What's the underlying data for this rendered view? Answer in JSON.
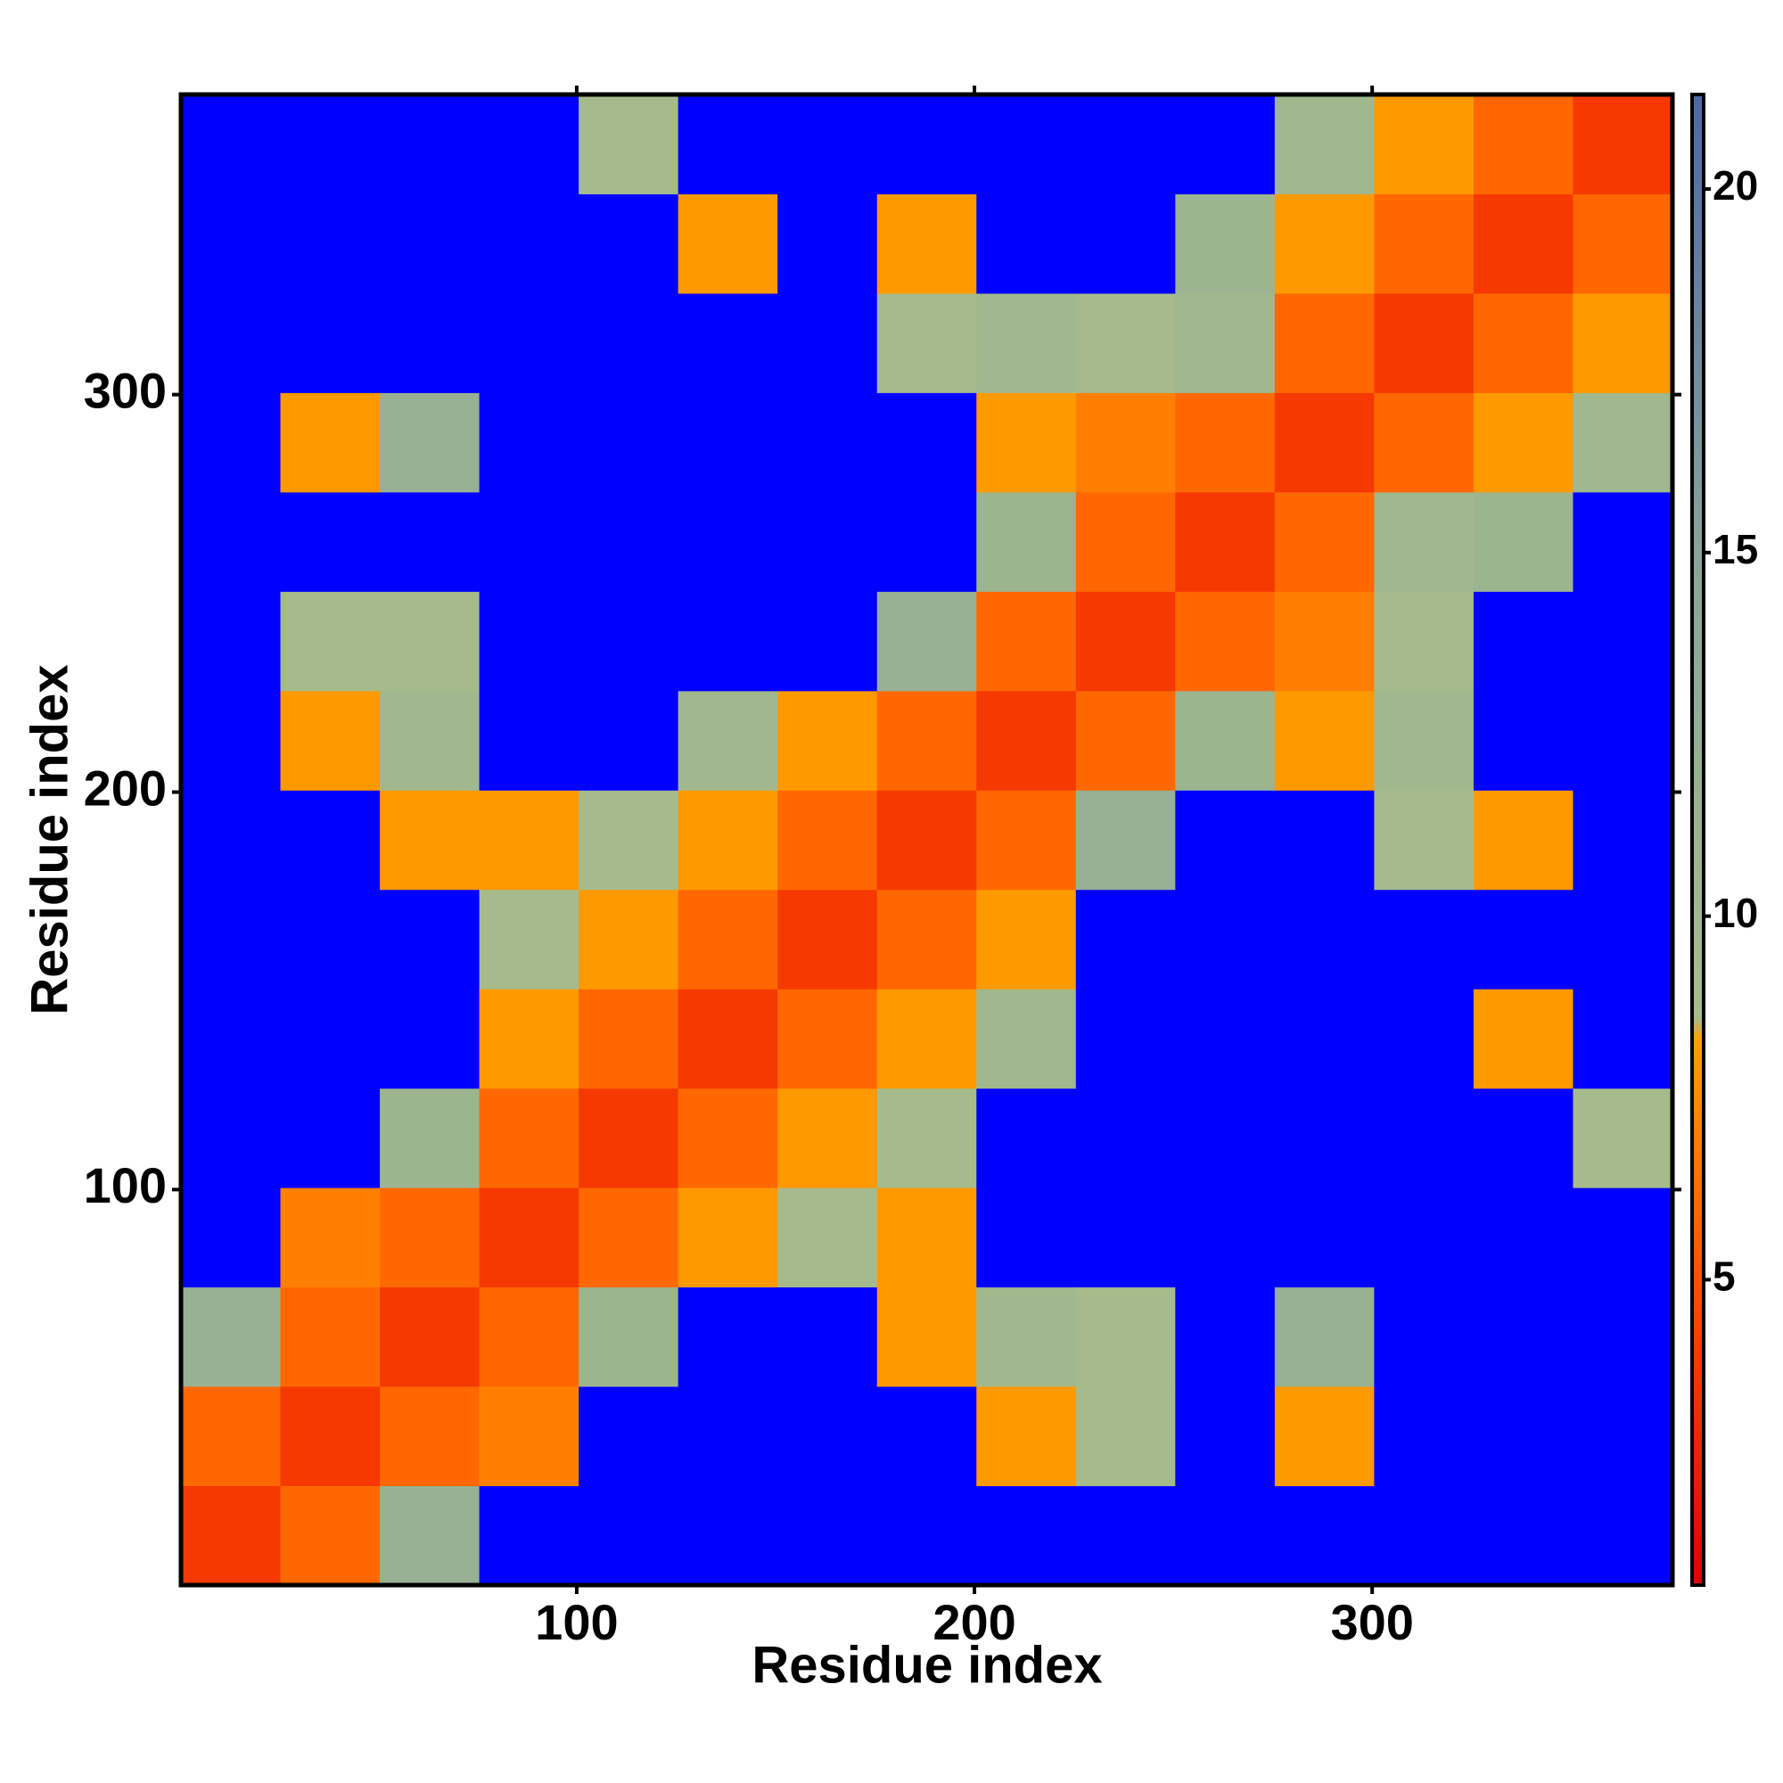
{
  "chart_data": {
    "type": "heatmap",
    "x_label": "Residue index",
    "y_label": "Residue index",
    "xbins": [
      0.5,
      25.5,
      50.5,
      75.5,
      100.5,
      125.5,
      150.5,
      175.5,
      200.5,
      225.5,
      250.5,
      275.5,
      300.5,
      325.5,
      350.5,
      375.5
    ],
    "ybins": [
      0.5,
      25.5,
      50.5,
      75.5,
      100.5,
      125.5,
      150.5,
      175.5,
      200.5,
      225.5,
      250.5,
      275.5,
      300.5,
      325.5,
      350.5,
      375.5
    ],
    "z": [
      [
        3.8,
        6,
        12,
        30,
        30,
        30,
        30,
        30,
        30,
        30,
        30,
        30,
        30,
        30,
        30
      ],
      [
        6,
        3.8,
        6,
        7,
        30,
        30,
        30,
        30,
        8,
        9,
        30,
        8,
        30,
        30,
        30
      ],
      [
        12,
        6,
        3.8,
        6,
        11,
        30,
        30,
        8,
        10,
        9,
        30,
        12,
        30,
        30,
        30
      ],
      [
        30,
        7,
        6,
        3.8,
        6,
        8,
        9,
        8,
        30,
        30,
        30,
        30,
        30,
        30,
        30
      ],
      [
        30,
        30,
        11,
        6,
        3.8,
        6,
        8,
        9,
        30,
        30,
        30,
        30,
        30,
        30,
        9
      ],
      [
        30,
        30,
        30,
        8,
        6,
        3.8,
        6,
        8,
        10,
        30,
        30,
        30,
        30,
        8,
        30
      ],
      [
        30,
        30,
        30,
        9,
        8,
        6,
        3.8,
        6,
        8,
        30,
        30,
        30,
        30,
        30,
        30
      ],
      [
        30,
        30,
        8,
        8,
        9,
        8,
        6,
        3.8,
        6,
        12,
        30,
        30,
        9,
        8,
        30
      ],
      [
        30,
        8,
        10,
        30,
        30,
        10,
        8,
        6,
        3.8,
        6,
        11,
        8,
        10,
        30,
        30
      ],
      [
        30,
        9,
        9,
        30,
        30,
        30,
        30,
        12,
        6,
        3.8,
        6,
        7,
        9,
        30,
        30
      ],
      [
        30,
        30,
        30,
        30,
        30,
        30,
        30,
        30,
        11,
        6,
        3.8,
        6,
        10,
        11,
        30
      ],
      [
        30,
        8,
        12,
        30,
        30,
        30,
        30,
        30,
        8,
        7,
        6,
        3.8,
        6,
        8,
        10
      ],
      [
        30,
        30,
        30,
        30,
        30,
        30,
        30,
        9,
        10,
        9,
        10,
        6,
        3.8,
        6,
        8
      ],
      [
        30,
        30,
        30,
        30,
        30,
        8,
        30,
        8,
        30,
        30,
        11,
        8,
        6,
        3.8,
        6
      ],
      [
        30,
        30,
        30,
        30,
        9,
        30,
        30,
        30,
        30,
        30,
        30,
        10,
        8,
        6,
        3.8
      ]
    ],
    "xlim": [
      0.5,
      375.5
    ],
    "ylim": [
      0.5,
      375.5
    ],
    "xticks": [
      100,
      200,
      300
    ],
    "yticks": [
      100,
      200,
      300
    ],
    "clim": [
      0.8,
      21.3
    ],
    "cticks": [
      5,
      10,
      15,
      20
    ],
    "colorscale": [
      {
        "value": 0.8,
        "color": "#e00000"
      },
      {
        "value": 5,
        "color": "#ff5000"
      },
      {
        "value": 8.3,
        "color": "#ffa000"
      },
      {
        "value": 8.6,
        "color": "#a8bd8a"
      },
      {
        "value": 15,
        "color": "#8aa49a"
      },
      {
        "value": 21.3,
        "color": "#4a6aa8"
      }
    ],
    "over_color": "#0000ff"
  }
}
